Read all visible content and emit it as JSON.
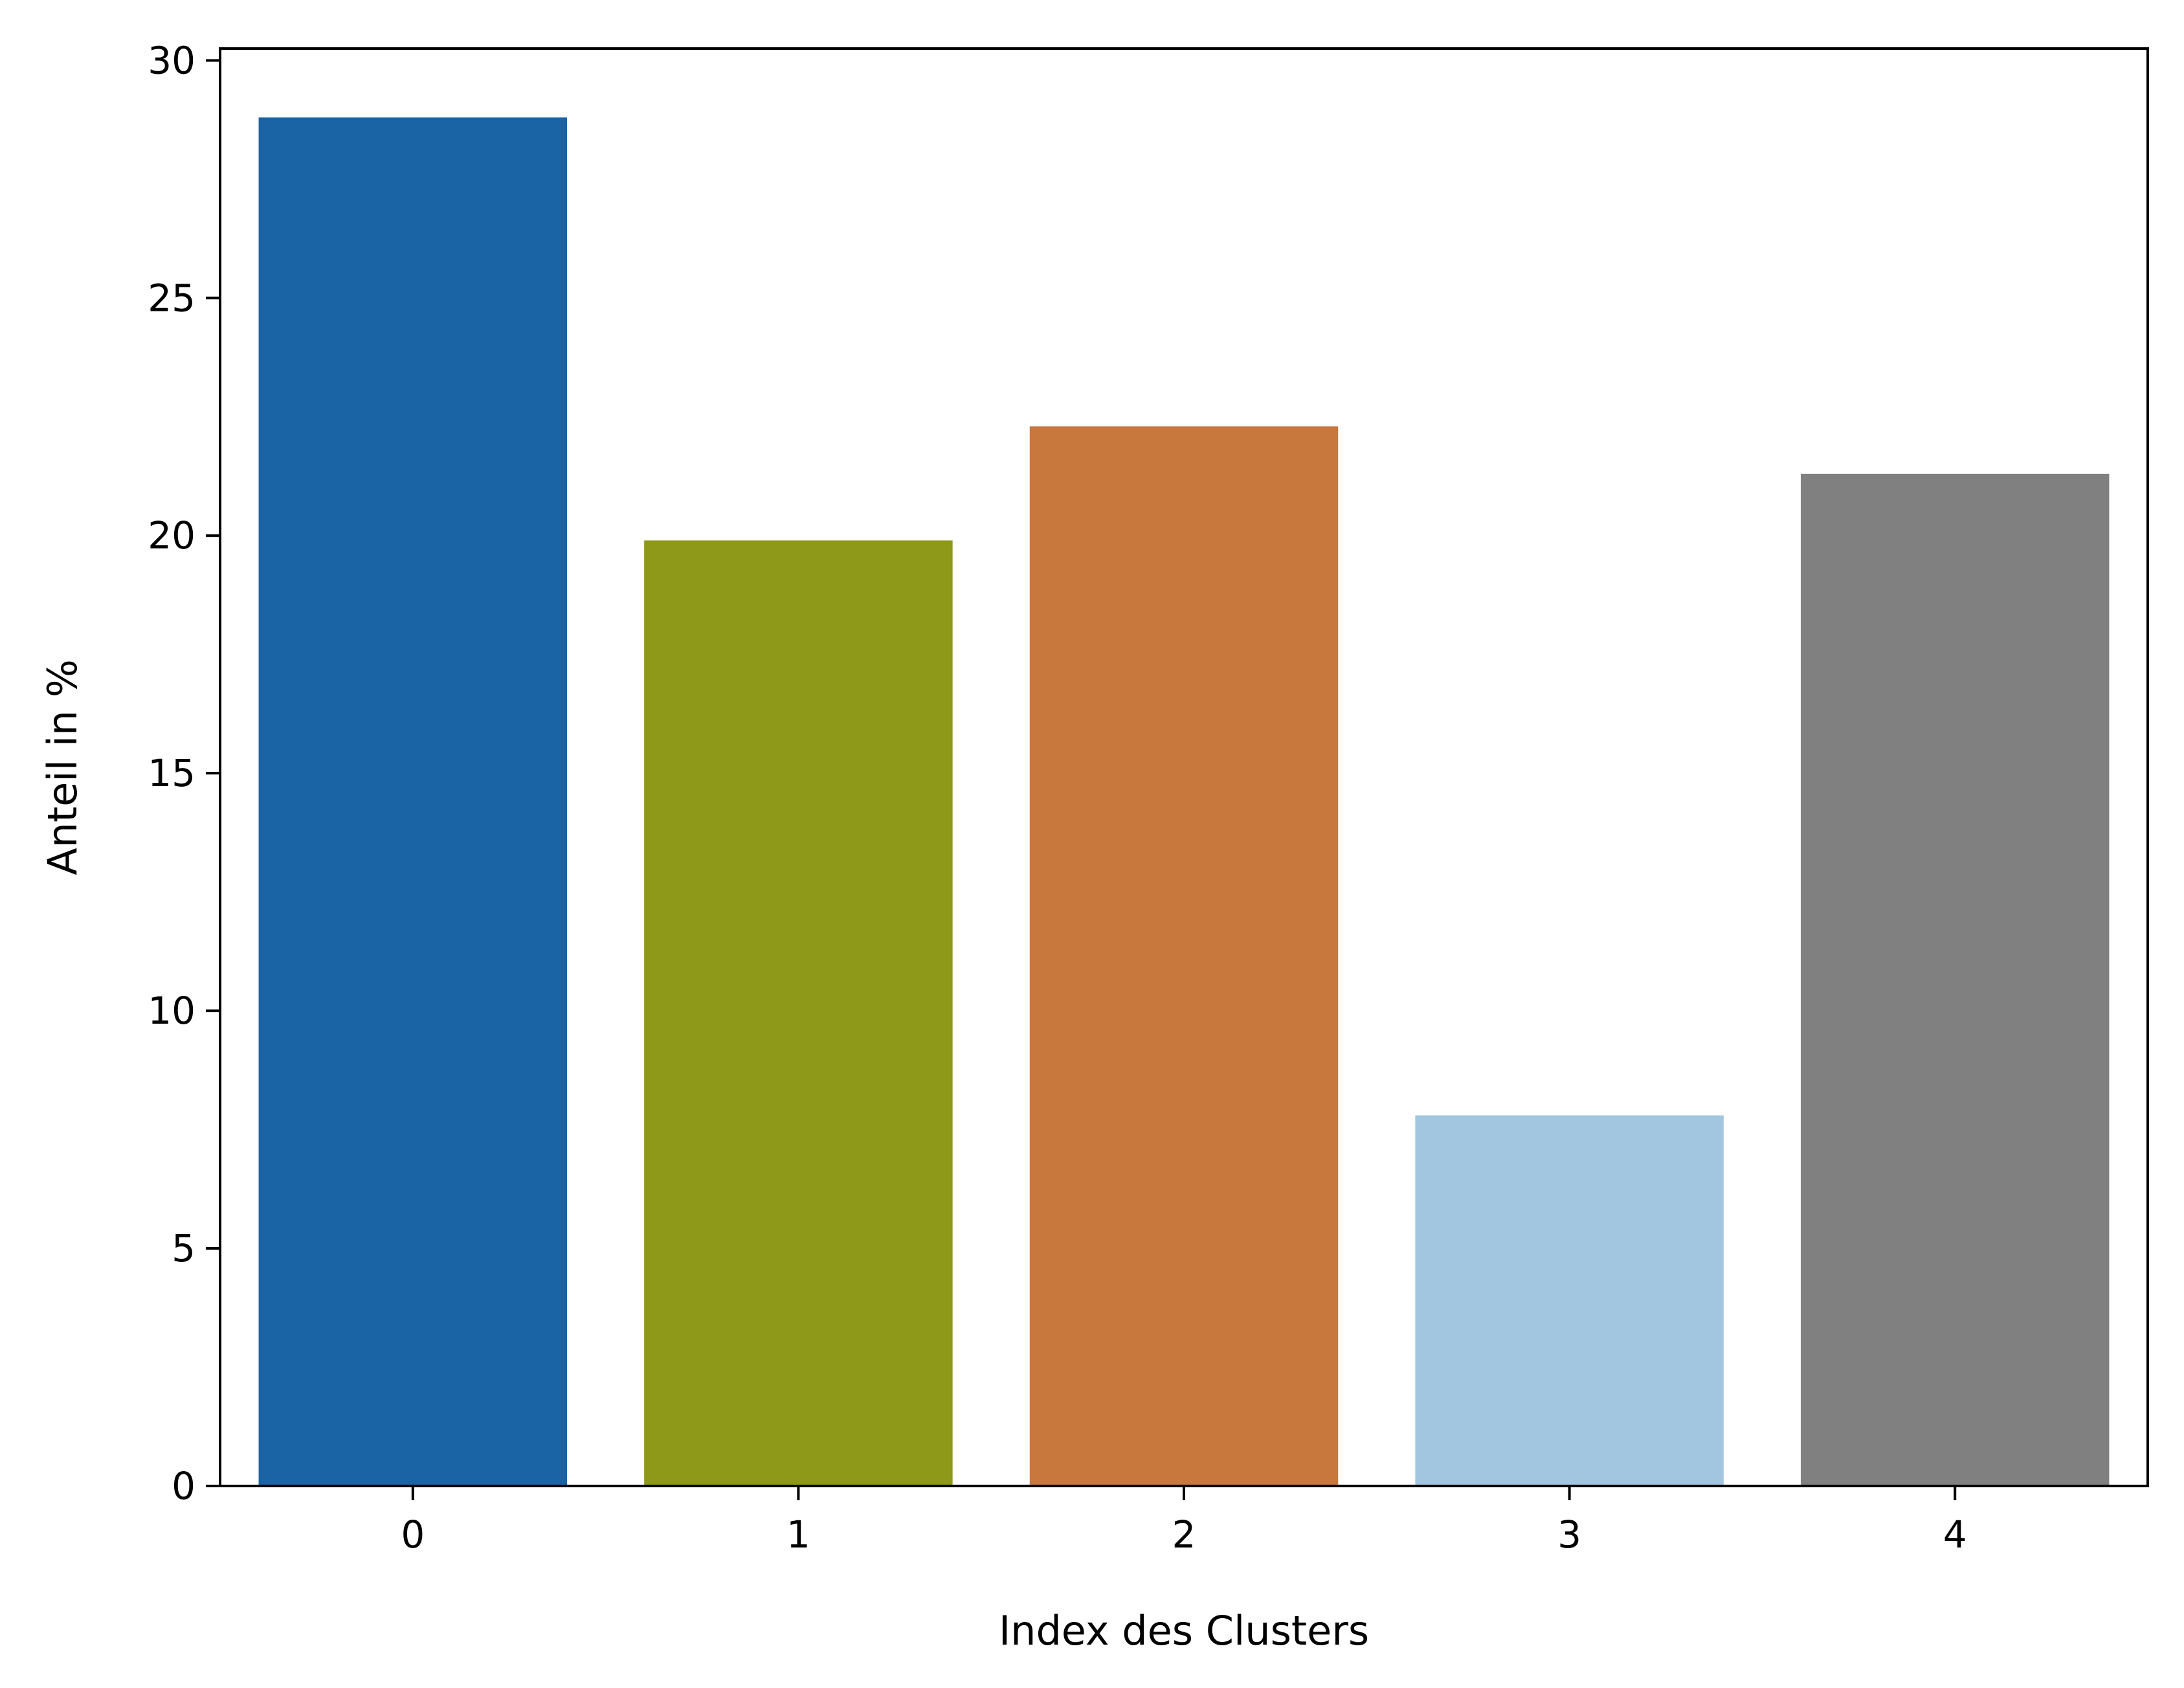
{
  "chart_data": {
    "type": "bar",
    "title": "",
    "xlabel": "Index des Clusters",
    "ylabel": "Anteil in %",
    "categories": [
      "0",
      "1",
      "2",
      "3",
      "4"
    ],
    "values": [
      28.8,
      19.9,
      22.3,
      7.8,
      21.3
    ],
    "colors": [
      "#1a63a5",
      "#8e9819",
      "#c8773d",
      "#a3c6e0",
      "#808080"
    ],
    "ylim": [
      0,
      30.25
    ],
    "yticks": [
      0,
      5,
      10,
      15,
      20,
      25,
      30
    ],
    "grid": false,
    "legend": false
  }
}
